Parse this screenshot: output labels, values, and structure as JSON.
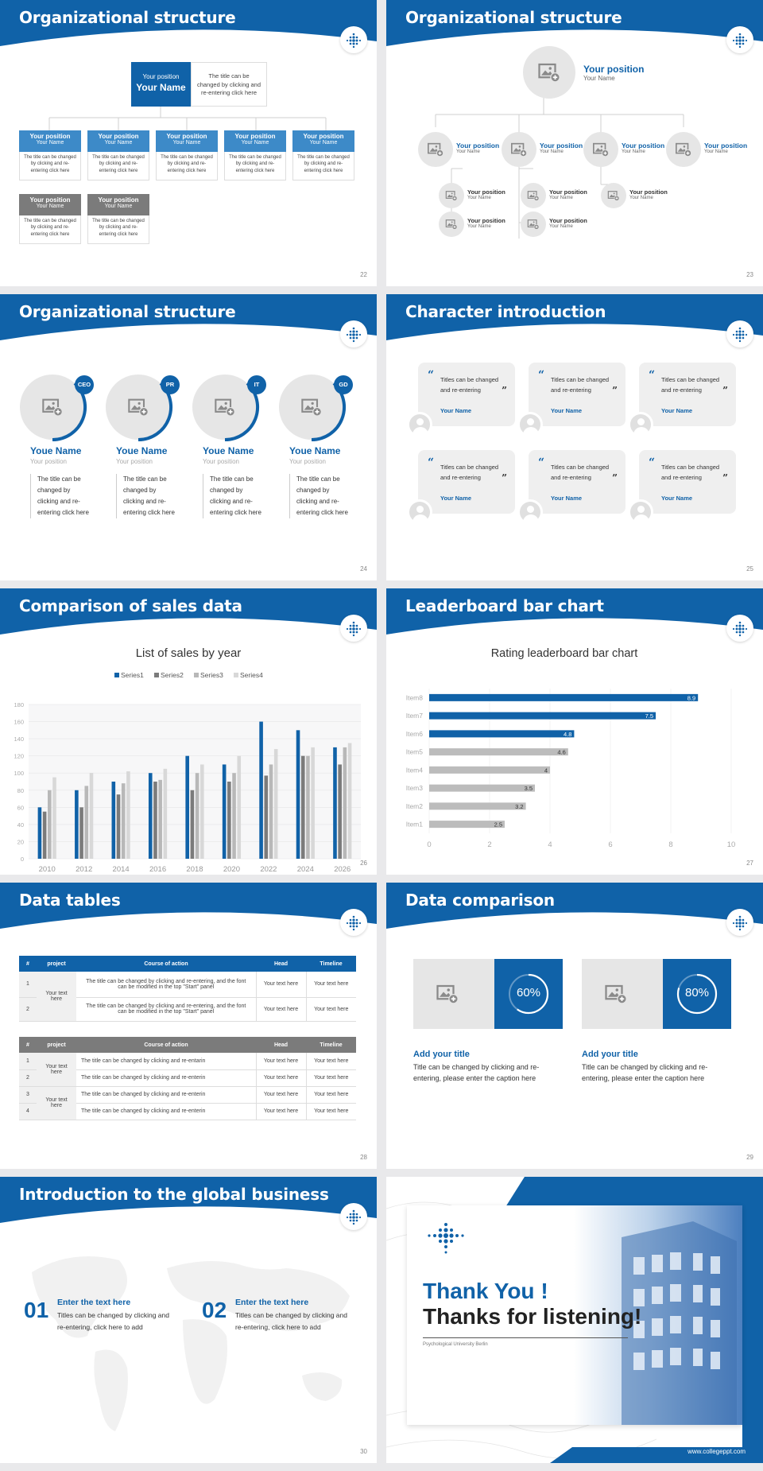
{
  "colors": {
    "brand": "#1062a8",
    "light_blue": "#3d8ac8",
    "gray": "#7b7b7b",
    "light_gray": "#e6e6e6"
  },
  "slides": {
    "s22": {
      "title": "Organizational structure",
      "page": "22",
      "top_position": "Your position",
      "top_name": "Your Name",
      "top_desc": "The title can be changed by clicking and re-entering click here",
      "cards": [
        {
          "position": "Your position",
          "name": "Your Name",
          "desc": "The title can be changed by clicking and re-entering click here"
        },
        {
          "position": "Your position",
          "name": "Your Name",
          "desc": "The title can be changed by clicking and re-entering click here"
        },
        {
          "position": "Your position",
          "name": "Your Name",
          "desc": "The title can be changed by clicking and re-entering click here"
        },
        {
          "position": "Your position",
          "name": "Your Name",
          "desc": "The title can be changed by clicking and re-entering click here"
        },
        {
          "position": "Your position",
          "name": "Your Name",
          "desc": "The title can be changed by clicking and re-entering click here"
        },
        {
          "position": "Your position",
          "name": "Your Name",
          "desc": "The title can be changed by clicking and re-entering click here"
        },
        {
          "position": "Your position",
          "name": "Your Name",
          "desc": "The title can be changed by clicking and re-entering click here"
        }
      ]
    },
    "s23": {
      "title": "Organizational structure",
      "page": "23",
      "top_position": "Your position",
      "top_name": "Your Name",
      "mid": [
        {
          "position": "Your position",
          "name": "Your Name"
        },
        {
          "position": "Your position",
          "name": "Your Name"
        },
        {
          "position": "Your position",
          "name": "Your Name"
        },
        {
          "position": "Your position",
          "name": "Your Name"
        }
      ],
      "sub": [
        {
          "position": "Your position",
          "name": "Your Name"
        },
        {
          "position": "Your position",
          "name": "Your Name"
        },
        {
          "position": "Your position",
          "name": "Your Name"
        },
        {
          "position": "Your position",
          "name": "Your Name"
        },
        {
          "position": "Your position",
          "name": "Your Name"
        }
      ]
    },
    "s24": {
      "title": "Organizational structure",
      "page": "24",
      "people": [
        {
          "tag": "CEO",
          "name": "Youe Name",
          "position": "Your position",
          "desc": "The title can be changed by clicking and re-entering click here"
        },
        {
          "tag": "PR",
          "name": "Youe Name",
          "position": "Your position",
          "desc": "The title can be changed by clicking and re-entering click here"
        },
        {
          "tag": "IT",
          "name": "Youe Name",
          "position": "Your position",
          "desc": "The title can be changed by clicking and re-entering click here"
        },
        {
          "tag": "GD",
          "name": "Youe Name",
          "position": "Your position",
          "desc": "The title can be changed by clicking and re-entering click here"
        }
      ]
    },
    "s25": {
      "title": "Character introduction",
      "page": "25",
      "quotes": [
        {
          "text": "Titles can be changed and re-entering",
          "name": "Your Name"
        },
        {
          "text": "Titles can be changed and re-entering",
          "name": "Your Name"
        },
        {
          "text": "Titles can be changed and re-entering",
          "name": "Your Name"
        },
        {
          "text": "Titles can be changed and re-entering",
          "name": "Your Name"
        },
        {
          "text": "Titles can be changed and re-entering",
          "name": "Your Name"
        },
        {
          "text": "Titles can be changed and re-entering",
          "name": "Your Name"
        }
      ]
    },
    "s26": {
      "title": "Comparison of sales data",
      "page": "26"
    },
    "s27": {
      "title": "Leaderboard bar chart",
      "page": "27"
    },
    "s28": {
      "title": "Data tables",
      "page": "28",
      "table1": {
        "headers": [
          "#",
          "project",
          "Course of action",
          "Head",
          "Timeline"
        ],
        "merged_project": "Your text here",
        "rows": [
          {
            "num": "1",
            "action": "The title can be changed by clicking and re-entering, and the font can be modified in the top \"Start\" panel",
            "head": "Your text here",
            "timeline": "Your text here"
          },
          {
            "num": "2",
            "action": "The title can be changed by clicking and re-entering, and the font can be modified in the top \"Start\" panel",
            "head": "Your text here",
            "timeline": "Your text here"
          }
        ]
      },
      "table2": {
        "headers": [
          "#",
          "project",
          "Course of action",
          "Head",
          "Timeline"
        ],
        "merged_project_a": "Your text here",
        "merged_project_b": "Your text here",
        "rows": [
          {
            "num": "1",
            "action": "The title can be changed by clicking and re-entarin",
            "head": "Your text here",
            "timeline": "Your text here"
          },
          {
            "num": "2",
            "action": "The title can be changed by clicking and re-enterin",
            "head": "Your text here",
            "timeline": "Your text here"
          },
          {
            "num": "3",
            "action": "The title can be changed by clicking and re-enterin",
            "head": "Your text here",
            "timeline": "Your text here"
          },
          {
            "num": "4",
            "action": "The title can be changed by clicking and re-enterin",
            "head": "Your text here",
            "timeline": "Your text here"
          }
        ]
      }
    },
    "s29": {
      "title": "Data comparison",
      "page": "29",
      "items": [
        {
          "percent": 60,
          "label": "60%",
          "title": "Add your title",
          "desc": "Title can be changed by clicking and re-entering, please enter the caption here"
        },
        {
          "percent": 80,
          "label": "80%",
          "title": "Add your title",
          "desc": "Title can be changed by clicking and re-entering, please enter the caption here"
        }
      ]
    },
    "s30": {
      "title": "Introduction to the global business",
      "page": "30",
      "items": [
        {
          "num": "01",
          "title": "Enter the text here",
          "desc": "Titles can be changed by clicking and re-entering, click here to add"
        },
        {
          "num": "02",
          "title": "Enter the text here",
          "desc": "Titles can be changed by clicking and re-entering, click here to add"
        }
      ]
    },
    "s31": {
      "line1": "Thank You !",
      "line2": "Thanks for listening!",
      "university": "Psychological University Berlin",
      "website": "www.collegeppt.com"
    }
  },
  "chart_data": [
    {
      "type": "bar",
      "title": "List of sales by year",
      "categories": [
        "2010",
        "2012",
        "2014",
        "2016",
        "2018",
        "2020",
        "2022",
        "2024",
        "2026"
      ],
      "series": [
        {
          "name": "Series1",
          "color": "#1062a8",
          "values": [
            60,
            80,
            90,
            100,
            120,
            110,
            160,
            150,
            130
          ]
        },
        {
          "name": "Series2",
          "color": "#7b7b7b",
          "values": [
            55,
            60,
            75,
            90,
            80,
            90,
            97,
            120,
            110
          ]
        },
        {
          "name": "Series3",
          "color": "#b8b8b8",
          "values": [
            80,
            85,
            88,
            92,
            100,
            100,
            110,
            120,
            130
          ]
        },
        {
          "name": "Series4",
          "color": "#d8d8d8",
          "values": [
            95,
            100,
            102,
            105,
            110,
            120,
            128,
            130,
            135
          ]
        }
      ],
      "ylim": [
        0,
        180
      ],
      "yticks": [
        0,
        20,
        40,
        60,
        80,
        100,
        120,
        140,
        160,
        180
      ],
      "legend": "top"
    },
    {
      "type": "bar",
      "orientation": "horizontal",
      "title": "Rating leaderboard bar chart",
      "categories": [
        "Item8",
        "Item7",
        "Item6",
        "Item5",
        "Item4",
        "Item3",
        "Item2",
        "Item1"
      ],
      "values": [
        8.9,
        7.5,
        4.8,
        4.6,
        4,
        3.5,
        3.2,
        2.5
      ],
      "highlight_count": 3,
      "xlim": [
        0,
        10
      ],
      "xticks": [
        0,
        2,
        4,
        6,
        8,
        10
      ]
    }
  ]
}
